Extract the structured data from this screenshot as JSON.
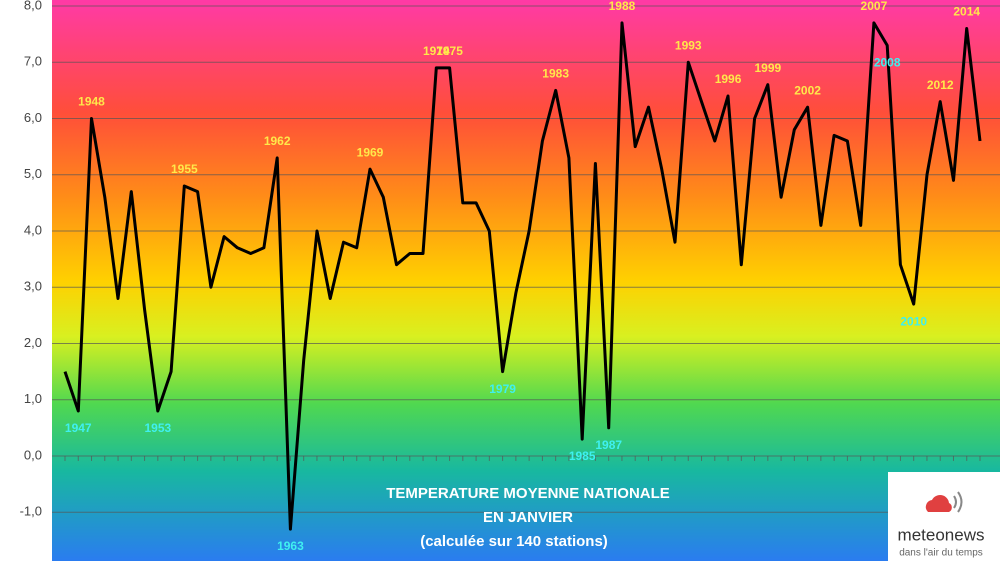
{
  "chart_data": {
    "type": "line",
    "title_lines": [
      "TEMPERATURE MOYENNE NATIONALE",
      "EN JANVIER",
      "(calculée sur 140 stations)"
    ],
    "logo": {
      "name": "meteonews",
      "tagline": "dans l'air du temps"
    },
    "categories": [
      null,
      "1947",
      "1948",
      null,
      null,
      null,
      null,
      "1953",
      null,
      "1955",
      null,
      null,
      null,
      null,
      null,
      null,
      "1962",
      "1963",
      null,
      null,
      null,
      null,
      null,
      "1969",
      null,
      null,
      null,
      null,
      "1974",
      "1975",
      null,
      null,
      null,
      "1979",
      null,
      null,
      null,
      "1983",
      null,
      "1985",
      null,
      "1987",
      "1988",
      null,
      null,
      null,
      null,
      "1993",
      null,
      null,
      "1996",
      null,
      null,
      "1999",
      null,
      null,
      "2002",
      null,
      null,
      null,
      null,
      "2007",
      "2008",
      null,
      "2010",
      null,
      "2012",
      null,
      "2014",
      null
    ],
    "series": [
      {
        "color": "#000000",
        "values": [
          1.5,
          0.8,
          6.0,
          4.6,
          2.8,
          4.7,
          2.6,
          0.8,
          1.5,
          4.8,
          4.7,
          3.0,
          3.9,
          3.7,
          3.6,
          3.7,
          5.3,
          -1.3,
          1.7,
          4.0,
          2.8,
          3.8,
          3.7,
          5.1,
          4.6,
          3.4,
          3.6,
          3.6,
          6.9,
          6.9,
          4.5,
          4.5,
          4.0,
          1.5,
          2.9,
          4.0,
          5.6,
          6.5,
          5.3,
          0.3,
          5.2,
          0.5,
          7.7,
          5.5,
          6.2,
          5.1,
          3.8,
          7.0,
          6.3,
          5.6,
          6.4,
          3.4,
          6.0,
          6.6,
          4.6,
          5.8,
          6.2,
          4.1,
          5.7,
          5.6,
          4.1,
          7.7,
          7.3,
          3.4,
          2.7,
          5.0,
          6.3,
          4.9,
          7.6,
          5.6
        ]
      }
    ],
    "ylim": [
      -1.85,
      8.0
    ],
    "yticks": [
      {
        "value": -1,
        "label": "-1,0"
      },
      {
        "value": 0,
        "label": "0,0"
      },
      {
        "value": 1,
        "label": "1,0"
      },
      {
        "value": 2,
        "label": "2,0"
      },
      {
        "value": 3,
        "label": "3,0"
      },
      {
        "value": 4,
        "label": "4,0"
      },
      {
        "value": 5,
        "label": "5,0"
      },
      {
        "value": 6,
        "label": "6,0"
      },
      {
        "value": 7,
        "label": "7,0"
      },
      {
        "value": 8,
        "label": "8,0"
      }
    ],
    "grid": true
  }
}
